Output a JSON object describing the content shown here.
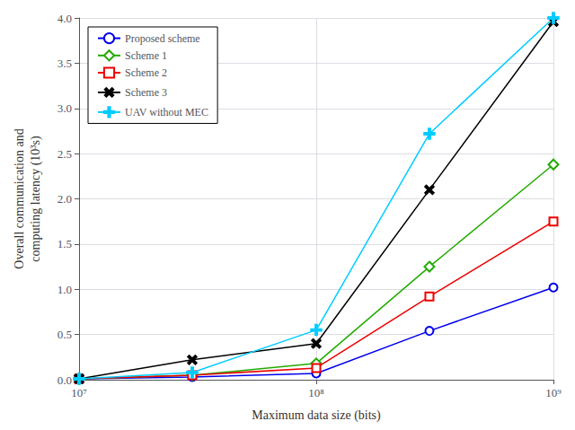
{
  "chart_data": {
    "type": "line",
    "x": [
      10000000,
      30000000,
      100000000,
      300000000,
      1000000000
    ],
    "series": [
      {
        "name": "Proposed scheme",
        "color": "#0000ee",
        "marker": "circle",
        "values": [
          0.01,
          0.03,
          0.07,
          0.54,
          1.02
        ]
      },
      {
        "name": "Scheme 1",
        "color": "#22aa00",
        "marker": "diamond",
        "values": [
          0.01,
          0.05,
          0.18,
          1.25,
          2.38
        ]
      },
      {
        "name": "Scheme 2",
        "color": "#ee0000",
        "marker": "square",
        "values": [
          0.01,
          0.05,
          0.13,
          0.92,
          1.75
        ]
      },
      {
        "name": "Scheme 3",
        "color": "#000000",
        "marker": "x",
        "values": [
          0.01,
          0.22,
          0.4,
          2.1,
          3.96
        ]
      },
      {
        "name": "UAV without MEC",
        "color": "#00ccff",
        "marker": "plus",
        "values": [
          0.01,
          0.08,
          0.55,
          2.72,
          4.0
        ]
      }
    ],
    "xlabel": "Maximum data size (bits)",
    "ylabel": "Overall communication and\ncomputing latency (10³s)",
    "xlim": [
      10000000,
      1000000000
    ],
    "ylim": [
      0,
      4.0
    ],
    "xticks": [
      {
        "value": 10000000,
        "label": "10⁷"
      },
      {
        "value": 100000000,
        "label": "10⁸"
      },
      {
        "value": 1000000000,
        "label": "10⁹"
      }
    ],
    "yticks": [
      {
        "value": 0,
        "label": "0.0"
      },
      0.5,
      {
        "value": 1,
        "label": "1.0"
      },
      1.5,
      {
        "value": 2,
        "label": "2.0"
      },
      2.5,
      {
        "value": 3,
        "label": "3.0"
      },
      3.5,
      {
        "value": 4,
        "label": "4.0"
      }
    ],
    "log": "x",
    "grid": true,
    "legend": "upper left"
  }
}
